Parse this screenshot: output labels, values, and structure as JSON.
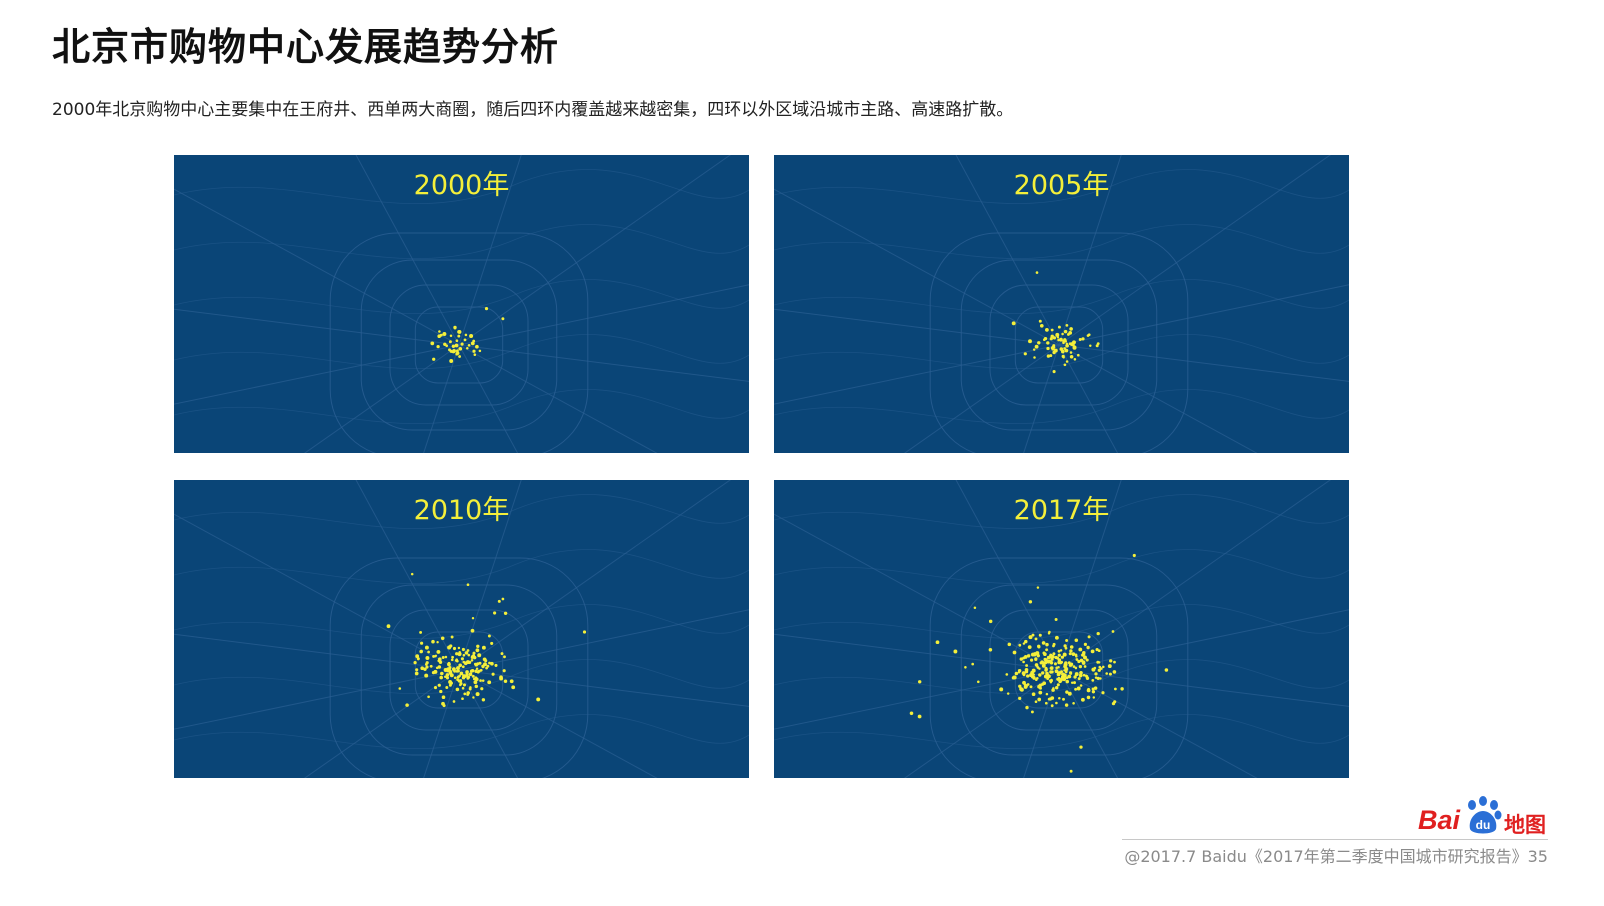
{
  "page": {
    "title": "北京市购物中心发展趋势分析",
    "subtitle": "2000年北京购物中心主要集中在王府井、西单两大商圈，随后四环内覆盖越来越密集，四环以外区域沿城市主路、高速路扩散。"
  },
  "maps": [
    {
      "label": "2000年"
    },
    {
      "label": "2005年"
    },
    {
      "label": "2010年"
    },
    {
      "label": "2017年"
    }
  ],
  "colors": {
    "map_background": "#0a4577",
    "road_lines": "#2a5f93",
    "point_color": "#f4ef3a",
    "label_color": "#f4ef3a",
    "brand_red": "#e02020"
  },
  "logo": {
    "bai": "Bai",
    "du": "du",
    "ditu": "地图",
    "icon": "baidu-paw-icon"
  },
  "footer": {
    "text": "@2017.7 Baidu《2017年第二季度中国城市研究报告》35"
  }
}
